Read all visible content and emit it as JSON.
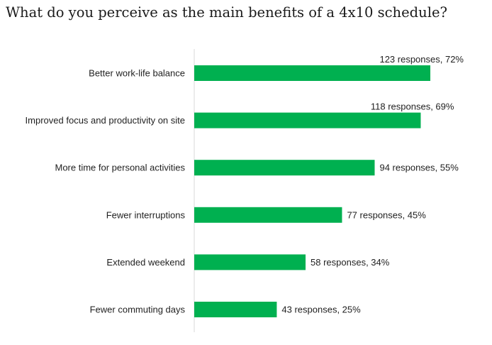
{
  "chart_data": {
    "type": "bar",
    "orientation": "horizontal",
    "title": "What do you perceive as the main benefits of a 4x10 schedule?",
    "xlabel": "",
    "ylabel": "",
    "categories": [
      "Better work-life balance",
      "Improved focus and productivity on site",
      "More time for personal activities",
      "Fewer interruptions",
      "Extended weekend",
      "Fewer commuting days"
    ],
    "values": [
      123,
      118,
      94,
      77,
      58,
      43
    ],
    "percentages": [
      72,
      69,
      55,
      45,
      34,
      25
    ],
    "data_labels": [
      "123 responses, 72%",
      "118 responses, 69%",
      "94 responses, 55%",
      "77 responses, 45%",
      "58 responses, 34%",
      "43 responses, 25%"
    ],
    "xlim": [
      0,
      123
    ],
    "grid": false,
    "legend": "none",
    "colors": {
      "bar": "#00b050",
      "axis": "#d9d9d9",
      "text": "#1f1f1f"
    }
  }
}
